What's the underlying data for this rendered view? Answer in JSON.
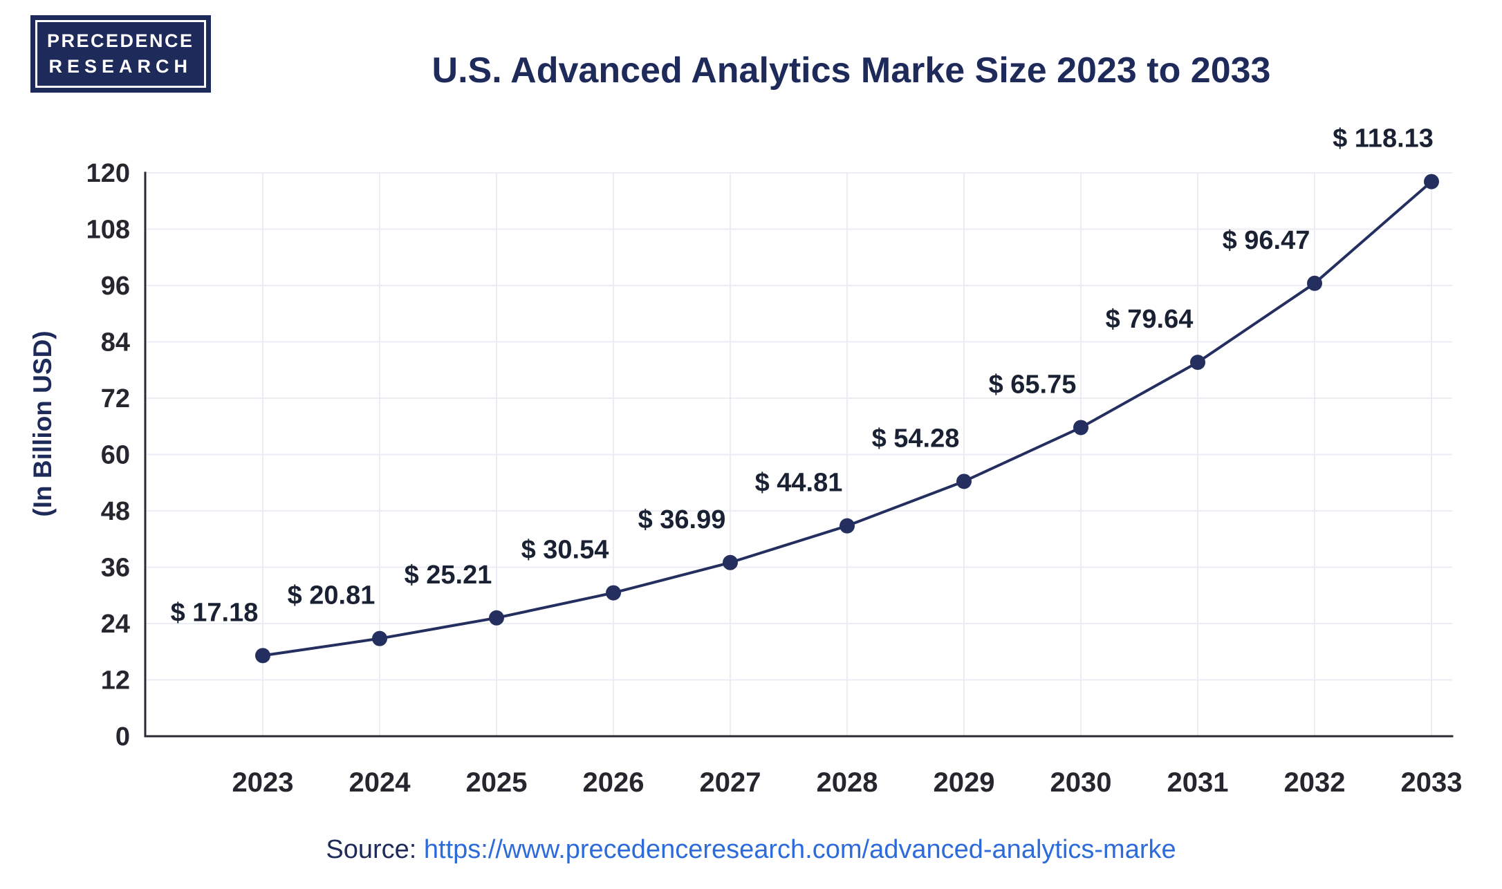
{
  "logo": {
    "line1": "PRECEDENCE",
    "line2": "RESEARCH"
  },
  "source": {
    "label": "Source: ",
    "url": "https://www.precedenceresearch.com/advanced-analytics-marke"
  },
  "colors": {
    "navy": "#1E2A5A",
    "line": "#242F5F",
    "label": "#1A2133",
    "grid": "#ECEDF4",
    "axis": "#2A2A32",
    "tick": "#26262E",
    "sourceBlue": "#2D6BDB"
  },
  "chart_data": {
    "type": "line",
    "title": "U.S. Advanced Analytics Marke Size 2023 to 2033",
    "categories": [
      "2023",
      "2024",
      "2025",
      "2026",
      "2027",
      "2028",
      "2029",
      "2030",
      "2031",
      "2032",
      "2033"
    ],
    "values": [
      17.18,
      20.81,
      25.21,
      30.54,
      36.99,
      44.81,
      54.28,
      65.75,
      79.64,
      96.47,
      118.13
    ],
    "value_labels": [
      "$ 17.18",
      "$ 20.81",
      "$ 25.21",
      "$ 30.54",
      "$ 36.99",
      "$ 44.81",
      "$ 54.28",
      "$ 65.75",
      "$ 79.64",
      "$ 96.47",
      "$ 118.13"
    ],
    "xlabel": "",
    "ylabel": "(In Billion USD)",
    "ylim": [
      0,
      120
    ],
    "yticks": [
      0,
      12,
      24,
      36,
      48,
      60,
      72,
      84,
      96,
      108,
      120
    ],
    "grid": true,
    "legend": "none",
    "line_color": "#242F5F",
    "marker_color": "#242F5F"
  }
}
